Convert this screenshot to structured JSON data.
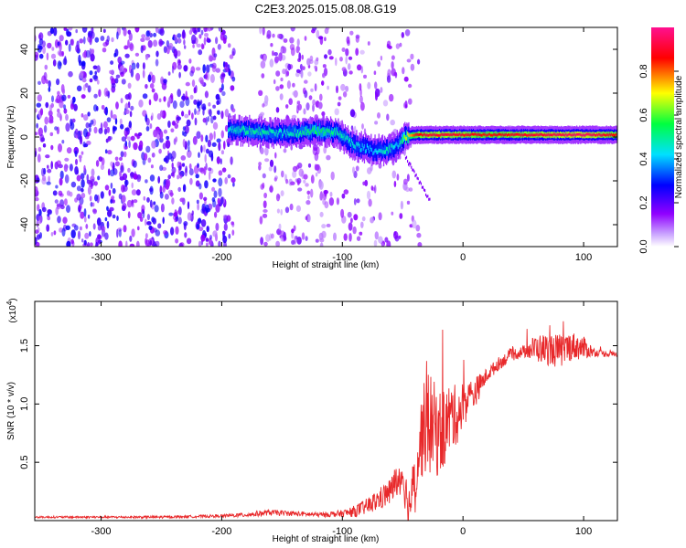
{
  "figure": {
    "title": "C2E3.2025.015.08.08.G19"
  },
  "chart_data": [
    {
      "type": "heatmap",
      "xlabel": "Height of straight line (km)",
      "ylabel": "Frequency (Hz)",
      "xlim": [
        -355,
        128
      ],
      "ylim": [
        -50,
        50
      ],
      "xticks": [
        -300,
        -200,
        -100,
        0,
        100
      ],
      "yticks": [
        -40,
        -20,
        0,
        20,
        40
      ],
      "xtick_labels": [
        "-300",
        "-200",
        "-100",
        "0",
        "100"
      ],
      "ytick_labels": [
        "-40",
        "-20",
        "0",
        "20",
        "40"
      ],
      "grid": false,
      "colorbar": {
        "label": "Normalized spectral amplitude",
        "range": [
          0,
          1
        ],
        "ticks": [
          0.0,
          0.2,
          0.4,
          0.6,
          0.8
        ],
        "tick_labels": [
          "0.0",
          "0.2",
          "0.4",
          "0.6",
          "0.8"
        ],
        "colormap": [
          "#ffffff",
          "#a000ff",
          "#0000ff",
          "#00ffff",
          "#00ff00",
          "#ffff00",
          "#ff0000",
          "#ff00a0"
        ]
      },
      "ridge": {
        "x": [
          -195,
          -180,
          -165,
          -150,
          -135,
          -120,
          -105,
          -90,
          -75,
          -62,
          -55,
          -48,
          -40,
          -30,
          -10,
          20,
          60,
          100,
          128
        ],
        "frequency": [
          3,
          3,
          2,
          2,
          2,
          3,
          2,
          -4,
          -6,
          -6,
          -4,
          0,
          1,
          1,
          1,
          1,
          1,
          1,
          1
        ],
        "amplitude": [
          0.45,
          0.5,
          0.5,
          0.45,
          0.5,
          0.55,
          0.5,
          0.45,
          0.4,
          0.5,
          0.4,
          0.65,
          0.85,
          0.9,
          0.9,
          0.85,
          0.9,
          0.95,
          0.85
        ]
      }
    },
    {
      "type": "line",
      "xlabel": "Height of straight line (km)",
      "ylabel": "SNR (10 * v/v)",
      "y_multiplier_label": "(x10",
      "y_multiplier_exponent": "4",
      "y_multiplier_close": ")",
      "xlim": [
        -355,
        128
      ],
      "ylim": [
        0,
        1.88
      ],
      "xticks": [
        -300,
        -200,
        -100,
        0,
        100
      ],
      "yticks": [
        0.5,
        1.0,
        1.5
      ],
      "xtick_labels": [
        "-300",
        "-200",
        "-100",
        "0",
        "100"
      ],
      "ytick_labels": [
        "0.5",
        "1.0",
        "1.5"
      ],
      "line_color": "#e8282a",
      "series": [
        {
          "x": [
            -355,
            -300,
            -250,
            -200,
            -180,
            -160,
            -140,
            -120,
            -100,
            -90,
            -80,
            -70,
            -60,
            -55,
            -50,
            -45,
            -40,
            -35,
            -30,
            -25,
            -20,
            -15,
            -10,
            -5,
            0,
            10,
            20,
            30,
            40,
            50,
            60,
            70,
            80,
            90,
            100,
            110,
            120,
            128
          ],
          "values": [
            0.03,
            0.03,
            0.03,
            0.04,
            0.05,
            0.07,
            0.06,
            0.05,
            0.06,
            0.08,
            0.12,
            0.18,
            0.25,
            0.35,
            0.4,
            0.1,
            0.35,
            0.7,
            0.85,
            0.8,
            0.75,
            0.8,
            0.9,
            0.9,
            1.0,
            1.1,
            1.25,
            1.35,
            1.42,
            1.45,
            1.48,
            1.47,
            1.45,
            1.5,
            1.48,
            1.44,
            1.43,
            1.43
          ]
        }
      ],
      "noise": {
        "x": [
          -355,
          -200,
          -170,
          -120,
          -100,
          -80,
          -60,
          -45,
          -40,
          -30,
          -15,
          0,
          20,
          50,
          60,
          80,
          100,
          110,
          128
        ],
        "amplitude": [
          0.008,
          0.012,
          0.025,
          0.02,
          0.03,
          0.07,
          0.12,
          0.2,
          0.25,
          0.45,
          0.35,
          0.2,
          0.06,
          0.05,
          0.12,
          0.15,
          0.1,
          0.03,
          0.025
        ]
      }
    }
  ]
}
